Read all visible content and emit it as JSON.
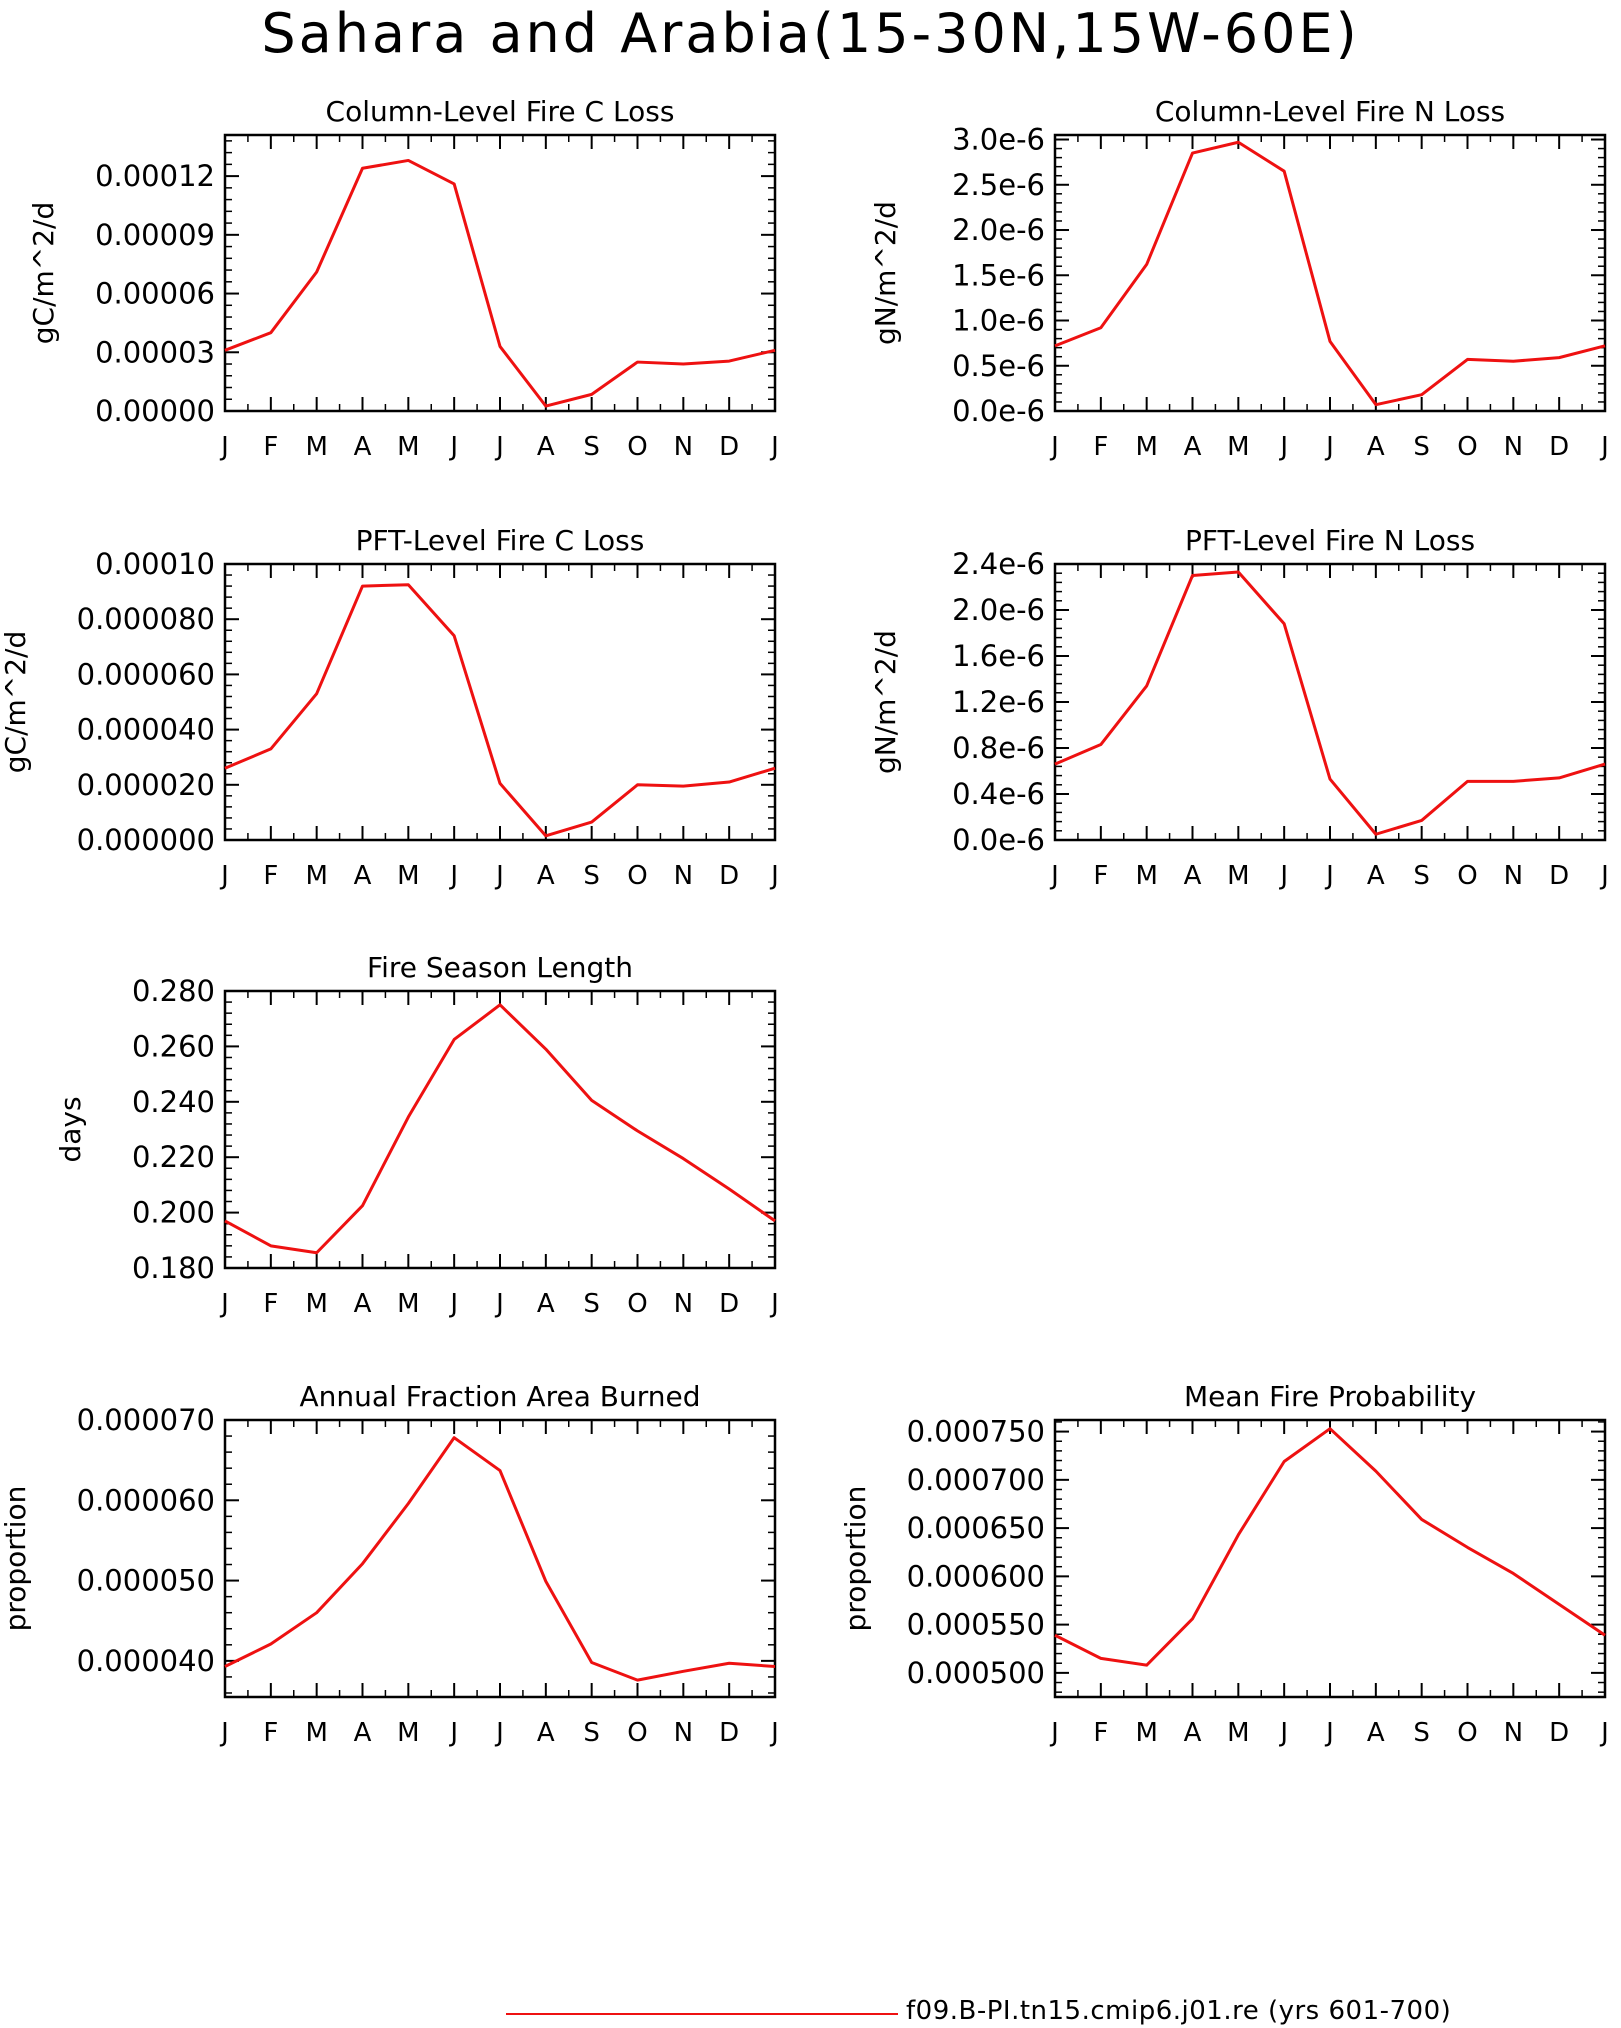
{
  "title": "Sahara and Arabia(15-30N,15W-60E)",
  "legend": {
    "label": "f09.B-PI.tn15.cmip6.j01.re (yrs 601-700)",
    "color": "#ee1111"
  },
  "chart_data": [
    {
      "type": "line",
      "title": "Column-Level Fire C Loss",
      "ylabel": "gC/m^2/d",
      "categories": [
        "J",
        "F",
        "M",
        "A",
        "M",
        "J",
        "J",
        "A",
        "S",
        "O",
        "N",
        "D",
        "J"
      ],
      "ylim": [
        0,
        0.000141
      ],
      "yticks": [
        0,
        3e-05,
        6e-05,
        9e-05,
        0.00012
      ],
      "ytick_labels": [
        "0.00000",
        "0.00003",
        "0.00006",
        "0.00009",
        "0.00012"
      ],
      "series": [
        {
          "values": [
            3.1e-05,
            4e-05,
            7.1e-05,
            0.000124,
            0.000128,
            0.000116,
            3.3e-05,
            2.5e-06,
            8.5e-06,
            2.5e-05,
            2.4e-05,
            2.55e-05,
            3.1e-05
          ]
        }
      ]
    },
    {
      "type": "line",
      "title": "Column-Level Fire N Loss",
      "ylabel": "gN/m^2/d",
      "categories": [
        "J",
        "F",
        "M",
        "A",
        "M",
        "J",
        "J",
        "A",
        "S",
        "O",
        "N",
        "D",
        "J"
      ],
      "ylim": [
        0,
        3.05e-06
      ],
      "yticks": [
        0,
        5e-07,
        1e-06,
        1.5e-06,
        2e-06,
        2.5e-06,
        3e-06
      ],
      "ytick_labels": [
        "0.0e-6",
        "0.5e-6",
        "1.0e-6",
        "1.5e-6",
        "2.0e-6",
        "2.5e-6",
        "3.0e-6"
      ],
      "series": [
        {
          "values": [
            7.2e-07,
            9.2e-07,
            1.62e-06,
            2.85e-06,
            2.97e-06,
            2.65e-06,
            7.7e-07,
            7e-08,
            1.8e-07,
            5.7e-07,
            5.5e-07,
            5.9e-07,
            7.2e-07
          ]
        }
      ]
    },
    {
      "type": "line",
      "title": "PFT-Level Fire C Loss",
      "ylabel": "gC/m^2/d",
      "categories": [
        "J",
        "F",
        "M",
        "A",
        "M",
        "J",
        "J",
        "A",
        "S",
        "O",
        "N",
        "D",
        "J"
      ],
      "ylim": [
        0,
        0.0001
      ],
      "yticks": [
        0,
        2e-05,
        4e-05,
        6e-05,
        8e-05,
        0.0001
      ],
      "ytick_labels": [
        "0.000000",
        "0.000020",
        "0.000040",
        "0.000060",
        "0.000080",
        "0.00010"
      ],
      "series": [
        {
          "values": [
            2.6e-05,
            3.3e-05,
            5.3e-05,
            9.2e-05,
            9.25e-05,
            7.4e-05,
            2.05e-05,
            1.5e-06,
            6.5e-06,
            2e-05,
            1.95e-05,
            2.1e-05,
            2.6e-05
          ]
        }
      ]
    },
    {
      "type": "line",
      "title": "PFT-Level Fire N Loss",
      "ylabel": "gN/m^2/d",
      "categories": [
        "J",
        "F",
        "M",
        "A",
        "M",
        "J",
        "J",
        "A",
        "S",
        "O",
        "N",
        "D",
        "J"
      ],
      "ylim": [
        0,
        2.4e-06
      ],
      "yticks": [
        0,
        4e-07,
        8e-07,
        1.2e-06,
        1.6e-06,
        2e-06,
        2.4e-06
      ],
      "ytick_labels": [
        "0.0e-6",
        "0.4e-6",
        "0.8e-6",
        "1.2e-6",
        "1.6e-6",
        "2.0e-6",
        "2.4e-6"
      ],
      "series": [
        {
          "values": [
            6.6e-07,
            8.3e-07,
            1.34e-06,
            2.3e-06,
            2.33e-06,
            1.88e-06,
            5.3e-07,
            5e-08,
            1.7e-07,
            5.1e-07,
            5.1e-07,
            5.4e-07,
            6.6e-07
          ]
        }
      ]
    },
    {
      "type": "line",
      "title": "Fire Season Length",
      "ylabel": "days",
      "categories": [
        "J",
        "F",
        "M",
        "A",
        "M",
        "J",
        "J",
        "A",
        "S",
        "O",
        "N",
        "D",
        "J"
      ],
      "ylim": [
        0.18,
        0.28
      ],
      "yticks": [
        0.18,
        0.2,
        0.22,
        0.24,
        0.26,
        0.28
      ],
      "ytick_labels": [
        "0.180",
        "0.200",
        "0.220",
        "0.240",
        "0.260",
        "0.280"
      ],
      "series": [
        {
          "values": [
            0.197,
            0.188,
            0.1855,
            0.2025,
            0.2345,
            0.2625,
            0.275,
            0.259,
            0.2405,
            0.2295,
            0.2195,
            0.2085,
            0.197
          ]
        }
      ]
    },
    {
      "type": "line",
      "title": "Annual Fraction Area Burned",
      "ylabel": "proportion",
      "categories": [
        "J",
        "F",
        "M",
        "A",
        "M",
        "J",
        "J",
        "A",
        "S",
        "O",
        "N",
        "D",
        "J"
      ],
      "ylim": [
        3.55e-05,
        7e-05
      ],
      "yticks": [
        4e-05,
        5e-05,
        6e-05,
        7e-05
      ],
      "ytick_labels": [
        "0.000040",
        "0.000050",
        "0.000060",
        "0.000070"
      ],
      "series": [
        {
          "values": [
            3.93e-05,
            4.21e-05,
            4.6e-05,
            5.21e-05,
            5.96e-05,
            6.78e-05,
            6.37e-05,
            4.99e-05,
            3.98e-05,
            3.76e-05,
            3.87e-05,
            3.97e-05,
            3.93e-05
          ]
        }
      ]
    },
    {
      "type": "line",
      "title": "Mean Fire Probability",
      "ylabel": "proportion",
      "categories": [
        "J",
        "F",
        "M",
        "A",
        "M",
        "J",
        "J",
        "A",
        "S",
        "O",
        "N",
        "D",
        "J"
      ],
      "ylim": [
        0.000475,
        0.000762
      ],
      "yticks": [
        0.0005,
        0.00055,
        0.0006,
        0.00065,
        0.0007,
        0.00075
      ],
      "ytick_labels": [
        "0.000500",
        "0.000550",
        "0.000600",
        "0.000650",
        "0.000700",
        "0.000750"
      ],
      "series": [
        {
          "values": [
            0.000539,
            0.000515,
            0.000508,
            0.000556,
            0.000643,
            0.000719,
            0.000753,
            0.000709,
            0.000659,
            0.00063,
            0.000603,
            0.000571,
            0.000539
          ]
        }
      ]
    }
  ]
}
